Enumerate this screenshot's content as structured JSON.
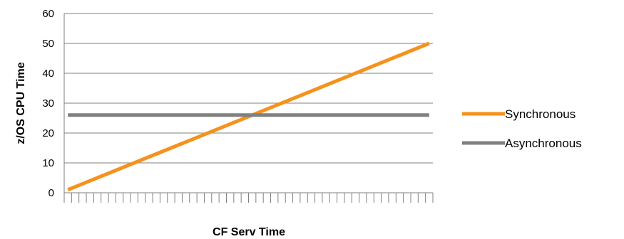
{
  "chart_data": {
    "type": "line",
    "xlabel": "CF Serv Time",
    "ylabel": "z/OS CPU Time",
    "ylim": [
      0,
      60
    ],
    "yticks": [
      0,
      10,
      20,
      30,
      40,
      50,
      60
    ],
    "x_tick_count": 50,
    "grid": "horizontal",
    "legend_position": "right",
    "series": [
      {
        "name": "Synchronous",
        "color": "#F5921E",
        "x": [
          1,
          50
        ],
        "y": [
          1,
          50
        ]
      },
      {
        "name": "Asynchronous",
        "color": "#808080",
        "x": [
          1,
          50
        ],
        "y": [
          26,
          26
        ]
      }
    ]
  }
}
